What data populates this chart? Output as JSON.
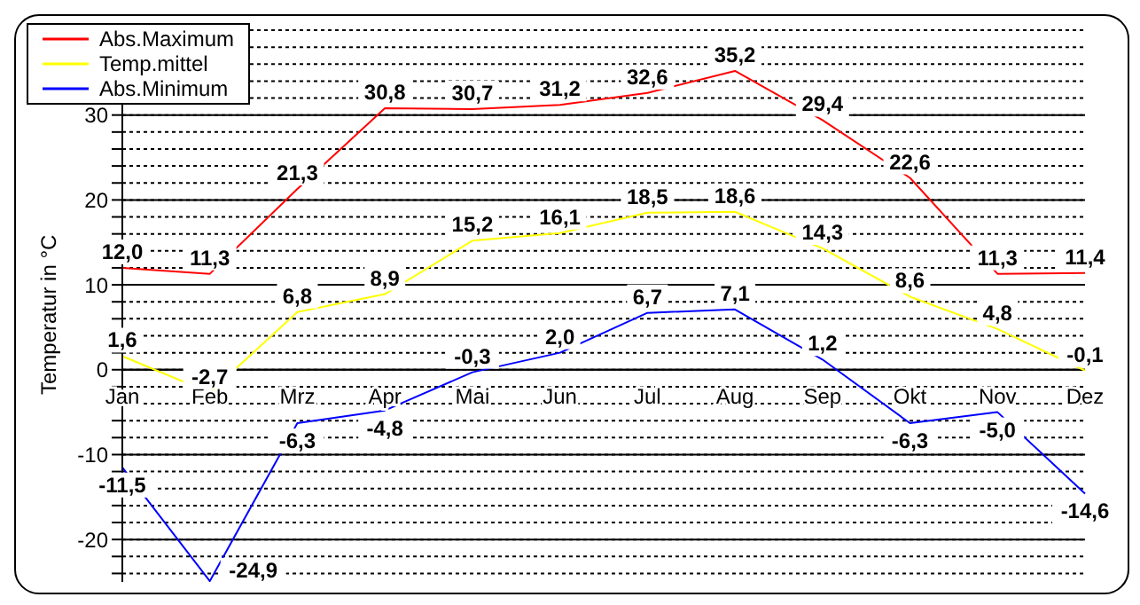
{
  "chart_data": {
    "type": "line",
    "ylabel": "Temperatur in °C",
    "categories": [
      "Jan",
      "Feb",
      "Mrz",
      "Apr",
      "Mai",
      "Jun",
      "Jul",
      "Aug",
      "Sep",
      "Okt",
      "Nov",
      "Dez"
    ],
    "series": [
      {
        "name": "Abs.Maximum",
        "color": "#ff0000",
        "values": [
          12.0,
          11.3,
          21.3,
          30.8,
          30.7,
          31.2,
          32.6,
          35.2,
          29.4,
          22.6,
          11.3,
          11.4
        ],
        "value_labels": [
          "12,0",
          "11,3",
          "21,3",
          "30,8",
          "30,7",
          "31,2",
          "32,6",
          "35,2",
          "29,4",
          "22,6",
          "11,3",
          "11,4"
        ]
      },
      {
        "name": "Temp.mittel",
        "color": "#ffff00",
        "values": [
          1.6,
          -2.7,
          6.8,
          8.9,
          15.2,
          16.1,
          18.5,
          18.6,
          14.3,
          8.6,
          4.8,
          -0.1
        ],
        "value_labels": [
          "1,6",
          "-2,7",
          "6,8",
          "8,9",
          "15,2",
          "16,1",
          "18,5",
          "18,6",
          "14,3",
          "8,6",
          "4,8",
          "-0,1"
        ]
      },
      {
        "name": "Abs.Minimum",
        "color": "#0000ff",
        "values": [
          -11.5,
          -24.9,
          -6.3,
          -4.8,
          -0.3,
          2.0,
          6.7,
          7.1,
          1.2,
          -6.3,
          -5.0,
          -14.6
        ],
        "value_labels": [
          "-11,5",
          "-24,9",
          "-6,3",
          "-4,8",
          "-0,3",
          "2,0",
          "6,7",
          "7,1",
          "1,2",
          "-6,3",
          "-5,0",
          "-14,6"
        ]
      }
    ],
    "ylim": [
      -25,
      40
    ],
    "yticks": [
      {
        "value": -24,
        "label": null
      },
      {
        "value": -22,
        "label": null
      },
      -20,
      {
        "value": -18,
        "label": null
      },
      {
        "value": -16,
        "label": null
      },
      {
        "value": -14,
        "label": null
      },
      {
        "value": -12,
        "label": null
      },
      -10,
      {
        "value": -8,
        "label": null
      },
      {
        "value": -6,
        "label": null
      },
      {
        "value": -4,
        "label": null
      },
      {
        "value": -2,
        "label": null
      },
      0,
      {
        "value": 2,
        "label": null
      },
      {
        "value": 4,
        "label": null
      },
      {
        "value": 6,
        "label": null
      },
      {
        "value": 8,
        "label": null
      },
      10,
      {
        "value": 12,
        "label": null
      },
      {
        "value": 14,
        "label": null
      },
      {
        "value": 16,
        "label": null
      },
      {
        "value": 18,
        "label": null
      },
      20,
      {
        "value": 22,
        "label": null
      },
      {
        "value": 24,
        "label": null
      },
      {
        "value": 26,
        "label": null
      },
      {
        "value": 28,
        "label": null
      },
      30,
      {
        "value": 32,
        "label": null
      },
      {
        "value": 34,
        "label": null
      },
      {
        "value": 36,
        "label": null
      },
      {
        "value": 38,
        "label": null
      },
      {
        "value": 40,
        "label": null
      }
    ],
    "grid": "y",
    "legend": "top left",
    "marker": "none",
    "line_style": "solid"
  }
}
